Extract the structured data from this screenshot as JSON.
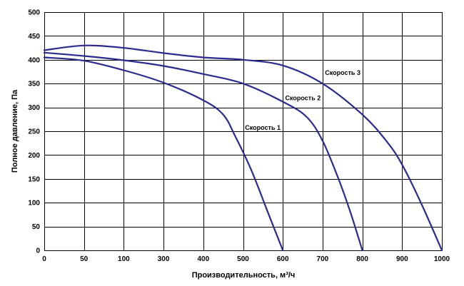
{
  "chart_data": {
    "type": "line",
    "xlabel": "Производительность, м³/ч",
    "ylabel": "Полное  давление, Па",
    "xlim": [
      0,
      1000
    ],
    "ylim": [
      0,
      500
    ],
    "grid": true,
    "x_ticks": [
      "0",
      "50",
      "100",
      "300",
      "400",
      "500",
      "600",
      "700",
      "800",
      "900",
      "1000"
    ],
    "y_ticks": [
      "0",
      "50",
      "100",
      "150",
      "200",
      "250",
      "300",
      "350",
      "400",
      "450",
      "500"
    ],
    "color": "#2b2b8f",
    "series": [
      {
        "name": "Скорость 1",
        "points": [
          [
            0,
            405
          ],
          [
            100,
            398
          ],
          [
            200,
            378
          ],
          [
            300,
            352
          ],
          [
            400,
            315
          ],
          [
            450,
            285
          ],
          [
            480,
            240
          ],
          [
            520,
            170
          ],
          [
            560,
            85
          ],
          [
            600,
            0
          ]
        ]
      },
      {
        "name": "Скорость 2",
        "points": [
          [
            0,
            415
          ],
          [
            100,
            408
          ],
          [
            200,
            399
          ],
          [
            300,
            387
          ],
          [
            400,
            370
          ],
          [
            500,
            350
          ],
          [
            600,
            312
          ],
          [
            660,
            280
          ],
          [
            700,
            230
          ],
          [
            740,
            150
          ],
          [
            770,
            80
          ],
          [
            800,
            0
          ]
        ]
      },
      {
        "name": "Скорость 3",
        "points": [
          [
            0,
            420
          ],
          [
            100,
            430
          ],
          [
            200,
            425
          ],
          [
            300,
            414
          ],
          [
            400,
            405
          ],
          [
            500,
            400
          ],
          [
            600,
            388
          ],
          [
            700,
            350
          ],
          [
            800,
            285
          ],
          [
            860,
            230
          ],
          [
            900,
            180
          ],
          [
            950,
            95
          ],
          [
            1000,
            0
          ]
        ]
      }
    ]
  }
}
